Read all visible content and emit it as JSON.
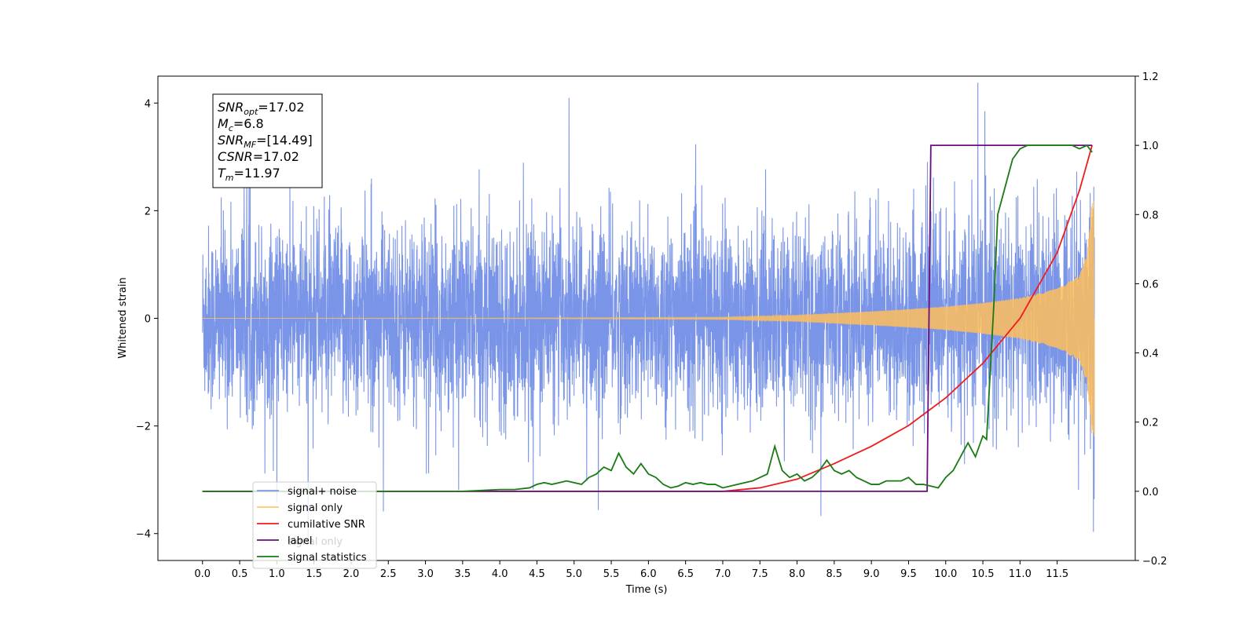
{
  "chart_data": {
    "type": "line",
    "x_axis": {
      "label": "Time (s)",
      "range": [
        -0.6,
        12.55
      ],
      "ticks": [
        0.0,
        0.5,
        1.0,
        1.5,
        2.0,
        2.5,
        3.0,
        3.5,
        4.0,
        4.5,
        5.0,
        5.5,
        6.0,
        6.5,
        7.0,
        7.5,
        8.0,
        8.5,
        9.0,
        9.5,
        10.0,
        10.5,
        11.0,
        11.5
      ],
      "tick_labels": [
        "0.0",
        "0.5",
        "1.0",
        "1.5",
        "2.0",
        "2.5",
        "3.0",
        "3.5",
        "4.0",
        "4.5",
        "5.0",
        "5.5",
        "6.0",
        "6.5",
        "7.0",
        "7.5",
        "8.0",
        "8.5",
        "9.0",
        "9.5",
        "10.0",
        "10.5",
        "11.0",
        "11.5"
      ]
    },
    "y_axis_left": {
      "label": "Whitened strain",
      "range": [
        -4.5,
        4.5
      ],
      "ticks": [
        -4,
        -2,
        0,
        2,
        4
      ],
      "tick_labels": [
        "−4",
        "−2",
        "0",
        "2",
        "4"
      ]
    },
    "y_axis_right": {
      "label": "",
      "range": [
        -0.2,
        1.2
      ],
      "ticks": [
        -0.2,
        0.0,
        0.2,
        0.4,
        0.6,
        0.8,
        1.0,
        1.2
      ],
      "tick_labels": [
        "−0.2",
        "0.0",
        "0.2",
        "0.4",
        "0.6",
        "0.8",
        "1.0",
        "1.2"
      ]
    },
    "grid": false,
    "legend_placement": "lower-left",
    "series": [
      {
        "name": "signal+ noise",
        "axis": "left",
        "color": "#6b8ae6",
        "kind": "noise",
        "description_values": {
          "t_start": 0.0,
          "t_end": 12.0,
          "typical_peak": 2.5,
          "max": 4.1,
          "min": -4.1
        }
      },
      {
        "name": "signal only",
        "axis": "left",
        "color": "#ffbe5c",
        "kind": "chirp",
        "envelope": {
          "t": [
            0.0,
            4.0,
            7.0,
            8.0,
            9.0,
            9.5,
            10.0,
            10.5,
            11.0,
            11.5,
            11.8,
            11.9,
            11.97
          ],
          "amp": [
            0.0,
            0.005,
            0.02,
            0.06,
            0.13,
            0.17,
            0.22,
            0.29,
            0.38,
            0.55,
            0.8,
            1.2,
            2.2
          ]
        }
      },
      {
        "name": "cumilative SNR",
        "axis": "right",
        "color": "#ee1c1c",
        "x": [
          0.0,
          7.0,
          7.5,
          8.0,
          8.5,
          9.0,
          9.5,
          10.0,
          10.5,
          11.0,
          11.5,
          11.8,
          11.97
        ],
        "y": [
          0.0,
          0.0,
          0.01,
          0.035,
          0.08,
          0.13,
          0.19,
          0.27,
          0.37,
          0.5,
          0.69,
          0.87,
          1.0
        ]
      },
      {
        "name": "label",
        "axis": "right",
        "color": "#6a0f7a",
        "x": [
          0.0,
          9.75,
          9.8,
          11.97
        ],
        "y": [
          0.0,
          0.0,
          1.0,
          1.0
        ]
      },
      {
        "name": "signal statistics",
        "axis": "right",
        "color": "#1a7a14",
        "x": [
          0.0,
          3.5,
          4.0,
          4.2,
          4.4,
          4.5,
          4.6,
          4.7,
          4.8,
          4.9,
          5.0,
          5.1,
          5.2,
          5.3,
          5.4,
          5.5,
          5.6,
          5.7,
          5.8,
          5.9,
          6.0,
          6.1,
          6.2,
          6.3,
          6.4,
          6.5,
          6.6,
          6.7,
          6.8,
          6.9,
          7.0,
          7.2,
          7.4,
          7.6,
          7.7,
          7.8,
          7.9,
          8.0,
          8.1,
          8.2,
          8.3,
          8.4,
          8.5,
          8.6,
          8.7,
          8.8,
          8.9,
          9.0,
          9.1,
          9.2,
          9.3,
          9.4,
          9.5,
          9.6,
          9.7,
          9.8,
          9.9,
          10.0,
          10.1,
          10.2,
          10.3,
          10.4,
          10.5,
          10.55,
          10.6,
          10.65,
          10.7,
          10.8,
          10.9,
          11.0,
          11.1,
          11.2,
          11.3,
          11.4,
          11.5,
          11.6,
          11.7,
          11.8,
          11.9,
          11.97
        ],
        "y": [
          0.0,
          0.0,
          0.005,
          0.005,
          0.01,
          0.02,
          0.025,
          0.02,
          0.025,
          0.03,
          0.025,
          0.02,
          0.04,
          0.05,
          0.07,
          0.06,
          0.11,
          0.07,
          0.05,
          0.08,
          0.05,
          0.04,
          0.02,
          0.01,
          0.015,
          0.025,
          0.02,
          0.025,
          0.02,
          0.02,
          0.01,
          0.02,
          0.03,
          0.05,
          0.13,
          0.06,
          0.04,
          0.05,
          0.03,
          0.04,
          0.06,
          0.09,
          0.06,
          0.05,
          0.06,
          0.04,
          0.03,
          0.02,
          0.02,
          0.03,
          0.03,
          0.03,
          0.04,
          0.02,
          0.02,
          0.015,
          0.01,
          0.04,
          0.06,
          0.1,
          0.14,
          0.1,
          0.16,
          0.15,
          0.35,
          0.55,
          0.8,
          0.88,
          0.96,
          0.99,
          1.0,
          1.0,
          1.0,
          1.0,
          1.0,
          1.0,
          1.0,
          0.99,
          1.0,
          0.98
        ]
      }
    ],
    "annotation_box": {
      "lines": [
        {
          "main": "SNR",
          "sub": "opt",
          "value": "=17.02"
        },
        {
          "main": "M",
          "sub": "c",
          "value": "=6.8"
        },
        {
          "main": "SNR",
          "sub": "MF",
          "value": "=[14.49]"
        },
        {
          "main": "CSNR",
          "sub": "",
          "value": "=17.02"
        },
        {
          "main": "T",
          "sub": "m",
          "value": "=11.97"
        }
      ]
    },
    "legend": {
      "entries": [
        "signal+ noise",
        "signal only",
        "cumilative SNR",
        "label",
        "signal statistics"
      ],
      "occluded_text": "signal only"
    }
  }
}
